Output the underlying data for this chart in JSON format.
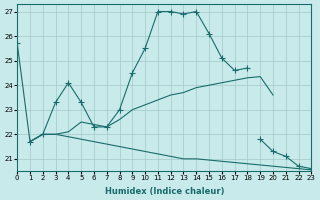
{
  "xlabel": "Humidex (Indice chaleur)",
  "xlim": [
    0,
    23
  ],
  "ylim": [
    20.5,
    27.3
  ],
  "yticks": [
    21,
    22,
    23,
    24,
    25,
    26,
    27
  ],
  "xticks": [
    0,
    1,
    2,
    3,
    4,
    5,
    6,
    7,
    8,
    9,
    10,
    11,
    12,
    13,
    14,
    15,
    16,
    17,
    18,
    19,
    20,
    21,
    22,
    23
  ],
  "bg_color": "#c8eaea",
  "grid_color": "#a0c8c8",
  "line_color": "#1a6b6b",
  "line1_x": [
    0,
    1,
    2,
    3,
    4,
    5,
    6,
    7,
    8,
    9,
    10,
    11,
    12,
    13,
    14,
    15,
    16,
    17,
    18
  ],
  "line1_y": [
    25.7,
    21.7,
    22.0,
    23.3,
    24.1,
    23.3,
    22.3,
    22.3,
    23.0,
    24.5,
    25.5,
    27.0,
    27.0,
    26.9,
    27.0,
    26.1,
    25.1,
    24.6,
    24.7
  ],
  "line2_x": [
    1,
    2,
    3,
    4,
    5,
    6,
    7,
    8,
    9,
    10,
    11,
    12,
    13,
    14,
    15,
    16,
    17,
    18,
    19,
    20
  ],
  "line2_y": [
    21.7,
    22.0,
    22.0,
    22.1,
    22.5,
    22.4,
    22.3,
    22.6,
    23.0,
    23.2,
    23.4,
    23.6,
    23.7,
    23.9,
    24.0,
    24.1,
    24.2,
    24.3,
    24.35,
    23.6
  ],
  "line3_x": [
    1,
    2,
    3,
    4,
    5,
    6,
    7,
    8,
    9,
    10,
    11,
    12,
    13,
    14,
    15,
    16,
    17,
    18,
    19,
    20,
    21,
    22,
    23
  ],
  "line3_y": [
    21.7,
    22.0,
    22.0,
    21.9,
    21.8,
    21.7,
    21.6,
    21.5,
    21.4,
    21.3,
    21.2,
    21.1,
    21.0,
    21.0,
    20.95,
    20.9,
    20.85,
    20.8,
    20.75,
    20.7,
    20.65,
    20.6,
    20.55
  ],
  "line4_x": [
    19,
    20,
    21,
    22,
    23
  ],
  "line4_y": [
    21.8,
    21.3,
    21.1,
    20.7,
    20.6
  ]
}
